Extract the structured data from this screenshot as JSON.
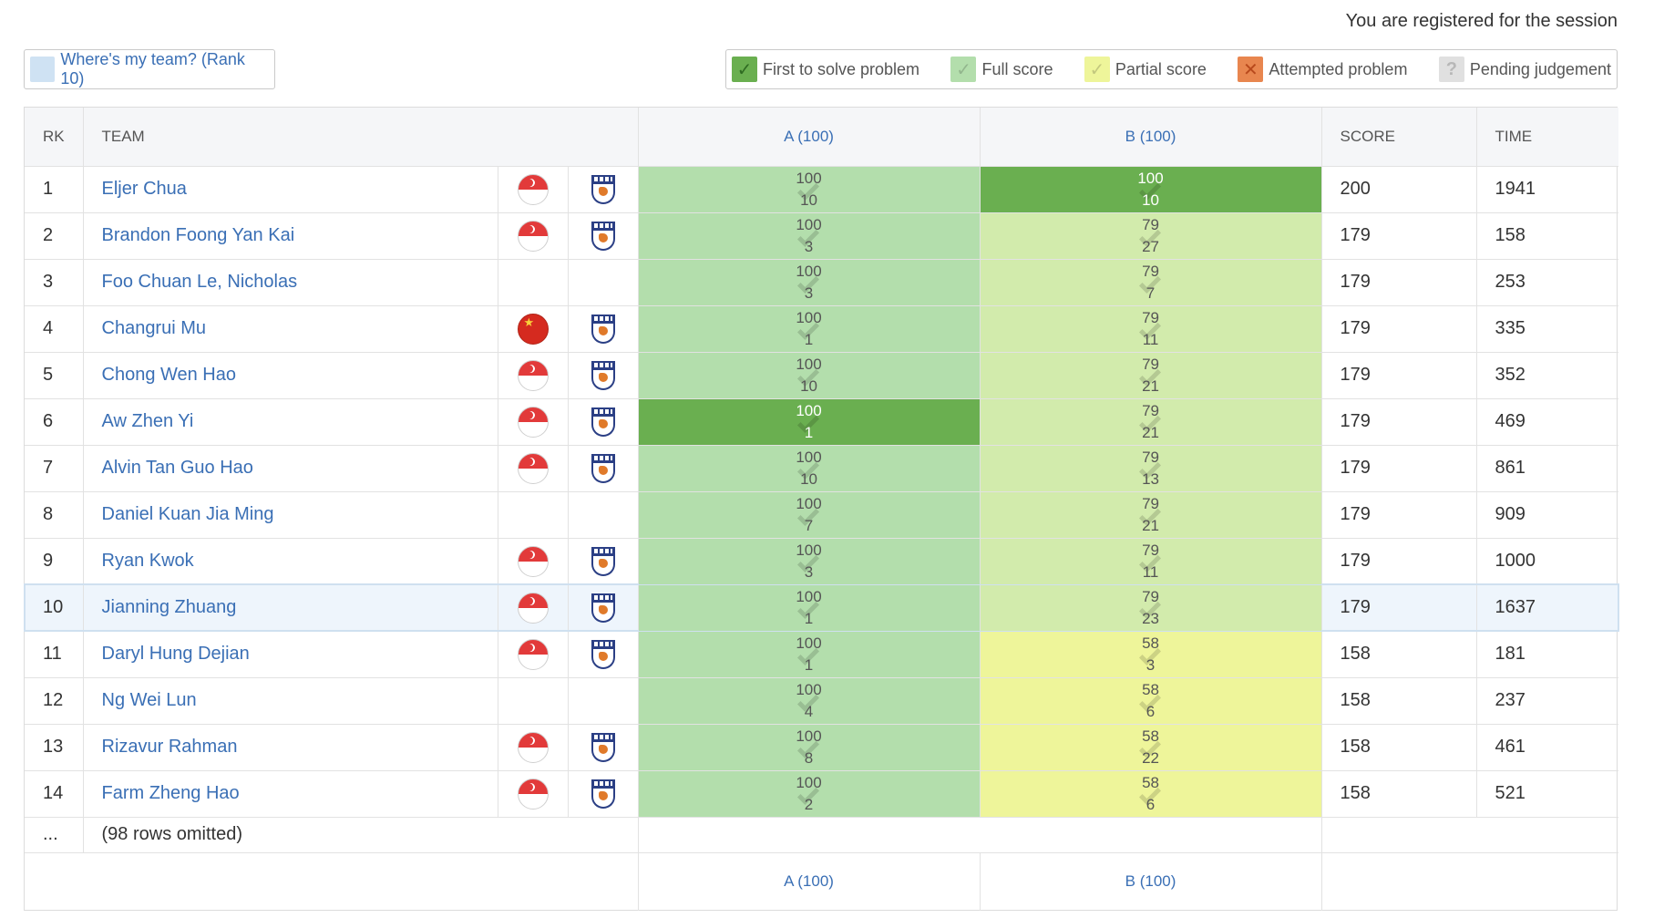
{
  "header": {
    "registered_text": "You are registered for the session"
  },
  "team_button": {
    "label": "Where's my team? (Rank 10)"
  },
  "legend": [
    {
      "key": "first",
      "label": "First to solve problem",
      "glyph": "✓"
    },
    {
      "key": "full",
      "label": "Full score",
      "glyph": "✓"
    },
    {
      "key": "partial",
      "label": "Partial score",
      "glyph": "✓"
    },
    {
      "key": "attempt",
      "label": "Attempted problem",
      "glyph": "✕"
    },
    {
      "key": "pending",
      "label": "Pending judgement",
      "glyph": "?"
    }
  ],
  "columns": {
    "rk": "RK",
    "team": "TEAM",
    "problem_a": "A (100)",
    "problem_b": "B (100)",
    "score": "SCORE",
    "time": "TIME"
  },
  "rows": [
    {
      "rk": "1",
      "team": "Eljer Chua",
      "flag": "sg",
      "logo": true,
      "a": {
        "score": "100",
        "tries": "10",
        "status": "full"
      },
      "b": {
        "score": "100",
        "tries": "10",
        "status": "first"
      },
      "total": "200",
      "time": "1941"
    },
    {
      "rk": "2",
      "team": "Brandon Foong Yan Kai",
      "flag": "sg",
      "logo": true,
      "a": {
        "score": "100",
        "tries": "3",
        "status": "full"
      },
      "b": {
        "score": "79",
        "tries": "27",
        "status": "full-b"
      },
      "total": "179",
      "time": "158"
    },
    {
      "rk": "3",
      "team": "Foo Chuan Le, Nicholas",
      "flag": "",
      "logo": false,
      "a": {
        "score": "100",
        "tries": "3",
        "status": "full"
      },
      "b": {
        "score": "79",
        "tries": "7",
        "status": "full-b"
      },
      "total": "179",
      "time": "253"
    },
    {
      "rk": "4",
      "team": "Changrui Mu",
      "flag": "cn",
      "logo": true,
      "a": {
        "score": "100",
        "tries": "1",
        "status": "full"
      },
      "b": {
        "score": "79",
        "tries": "11",
        "status": "full-b"
      },
      "total": "179",
      "time": "335"
    },
    {
      "rk": "5",
      "team": "Chong Wen Hao",
      "flag": "sg",
      "logo": true,
      "a": {
        "score": "100",
        "tries": "10",
        "status": "full"
      },
      "b": {
        "score": "79",
        "tries": "21",
        "status": "full-b"
      },
      "total": "179",
      "time": "352"
    },
    {
      "rk": "6",
      "team": "Aw Zhen Yi",
      "flag": "sg",
      "logo": true,
      "a": {
        "score": "100",
        "tries": "1",
        "status": "first"
      },
      "b": {
        "score": "79",
        "tries": "21",
        "status": "full-b"
      },
      "total": "179",
      "time": "469"
    },
    {
      "rk": "7",
      "team": "Alvin Tan Guo Hao",
      "flag": "sg",
      "logo": true,
      "a": {
        "score": "100",
        "tries": "10",
        "status": "full"
      },
      "b": {
        "score": "79",
        "tries": "13",
        "status": "full-b"
      },
      "total": "179",
      "time": "861"
    },
    {
      "rk": "8",
      "team": "Daniel Kuan Jia Ming",
      "flag": "",
      "logo": false,
      "a": {
        "score": "100",
        "tries": "7",
        "status": "full"
      },
      "b": {
        "score": "79",
        "tries": "21",
        "status": "full-b"
      },
      "total": "179",
      "time": "909"
    },
    {
      "rk": "9",
      "team": "Ryan Kwok",
      "flag": "sg",
      "logo": true,
      "a": {
        "score": "100",
        "tries": "3",
        "status": "full"
      },
      "b": {
        "score": "79",
        "tries": "11",
        "status": "full-b"
      },
      "total": "179",
      "time": "1000"
    },
    {
      "rk": "10",
      "team": "Jianning Zhuang",
      "flag": "sg",
      "logo": true,
      "highlight": true,
      "a": {
        "score": "100",
        "tries": "1",
        "status": "full"
      },
      "b": {
        "score": "79",
        "tries": "23",
        "status": "full-b"
      },
      "total": "179",
      "time": "1637"
    },
    {
      "rk": "11",
      "team": "Daryl Hung Dejian",
      "flag": "sg",
      "logo": true,
      "a": {
        "score": "100",
        "tries": "1",
        "status": "full"
      },
      "b": {
        "score": "58",
        "tries": "3",
        "status": "partial"
      },
      "total": "158",
      "time": "181"
    },
    {
      "rk": "12",
      "team": "Ng Wei Lun",
      "flag": "",
      "logo": false,
      "a": {
        "score": "100",
        "tries": "4",
        "status": "full"
      },
      "b": {
        "score": "58",
        "tries": "6",
        "status": "partial"
      },
      "total": "158",
      "time": "237"
    },
    {
      "rk": "13",
      "team": "Rizavur Rahman",
      "flag": "sg",
      "logo": true,
      "a": {
        "score": "100",
        "tries": "8",
        "status": "full"
      },
      "b": {
        "score": "58",
        "tries": "22",
        "status": "partial"
      },
      "total": "158",
      "time": "461"
    },
    {
      "rk": "14",
      "team": "Farm Zheng Hao",
      "flag": "sg",
      "logo": true,
      "a": {
        "score": "100",
        "tries": "2",
        "status": "full"
      },
      "b": {
        "score": "58",
        "tries": "6",
        "status": "partial"
      },
      "total": "158",
      "time": "521"
    }
  ],
  "omitted": {
    "rk": "...",
    "text": "(98 rows omitted)"
  },
  "footer": {
    "problem_a": "A (100)",
    "problem_b": "B (100)"
  },
  "colors": {
    "first": "#6aaf50",
    "full": "#b3deac",
    "full_b": "#d2ebac",
    "partial": "#eef59a",
    "attempt": "#e8864f",
    "pending": "#e0e0e0",
    "link": "#3a6fb5"
  }
}
